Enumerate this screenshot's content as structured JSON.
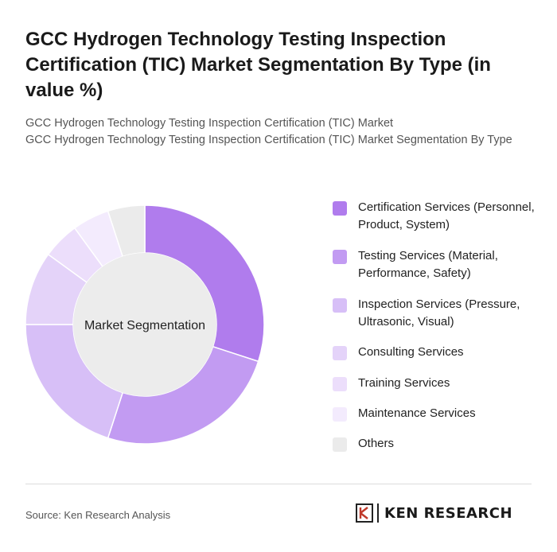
{
  "title": "GCC Hydrogen Technology Testing Inspection Certification (TIC) Market Segmentation By Type (in value %)",
  "subtitle_line1": "GCC Hydrogen Technology Testing Inspection Certification (TIC) Market",
  "subtitle_line2": "GCC Hydrogen Technology Testing Inspection Certification (TIC) Market Segmentation By Type",
  "chart_data": {
    "type": "pie",
    "donut": true,
    "center_label": "Market Segmentation",
    "legend_position": "right",
    "categories": [
      "Certification Services (Personnel, Product, System)",
      "Testing Services (Material, Performance, Safety)",
      "Inspection Services (Pressure, Ultrasonic, Visual)",
      "Consulting Services",
      "Training Services",
      "Maintenance Services",
      "Others"
    ],
    "values": [
      30,
      25,
      20,
      10,
      5,
      5,
      5
    ],
    "colors": [
      "#b07ced",
      "#c29bf2",
      "#d7bff7",
      "#e4d3f9",
      "#ecdefb",
      "#f3ebfd",
      "#ebebeb"
    ]
  },
  "footer": {
    "source": "Source: Ken Research Analysis",
    "logo_text": "KEN RESEARCH"
  }
}
